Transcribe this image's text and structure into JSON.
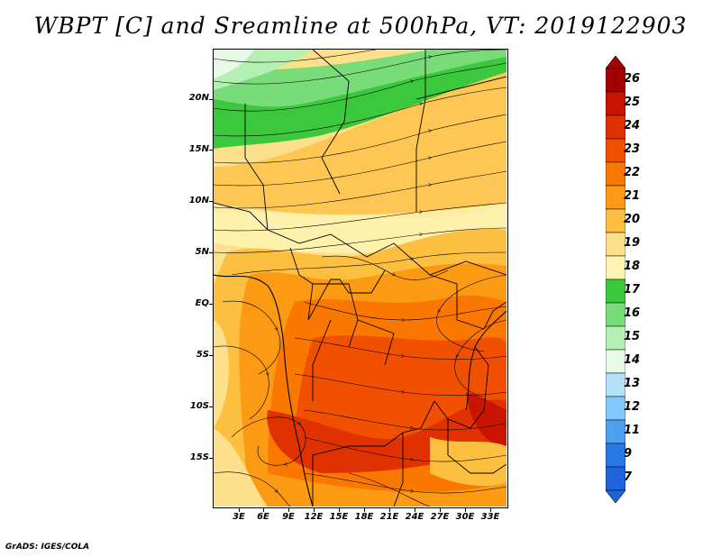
{
  "title": "WBPT [C] and Sreamline at 500hPa, VT: 2019122903",
  "credit": "GrADS: IGES/COLA",
  "map": {
    "variable": "WBPT [C]",
    "level": "500hPa",
    "overlay": "Streamline",
    "valid_time": "2019122903",
    "lat_labels": [
      "20N",
      "15N",
      "10N",
      "5N",
      "EQ",
      "5S",
      "10S",
      "15S"
    ],
    "lon_labels": [
      "3E",
      "6E",
      "9E",
      "12E",
      "15E",
      "18E",
      "21E",
      "24E",
      "27E",
      "30E",
      "33E"
    ]
  },
  "colorbar": {
    "labels": [
      "26",
      "25",
      "24",
      "23",
      "22",
      "21",
      "20",
      "19",
      "18",
      "17",
      "16",
      "15",
      "14",
      "13",
      "12",
      "11",
      "9",
      "7"
    ],
    "colors": [
      "#a50000",
      "#c81400",
      "#e03200",
      "#f05000",
      "#fa7800",
      "#fc9a14",
      "#fdbf40",
      "#fde08c",
      "#fef5b4",
      "#3cc83c",
      "#78dc78",
      "#b4f0b4",
      "#e6fae6",
      "#b4e0fa",
      "#82c8fa",
      "#50a0f0",
      "#2878e6",
      "#1e64dc"
    ]
  }
}
